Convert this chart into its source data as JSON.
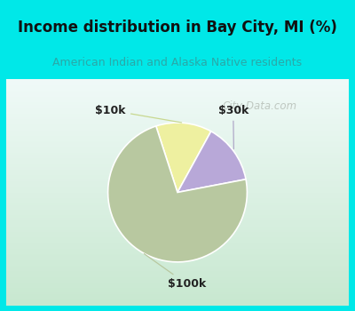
{
  "title": "Income distribution in Bay City, MI (%)",
  "subtitle": "American Indian and Alaska Native residents",
  "title_color": "#111111",
  "subtitle_color": "#2aa8a8",
  "slices": [
    {
      "label": "$10k",
      "value": 13,
      "color": "#eef0a0"
    },
    {
      "label": "$30k",
      "value": 14,
      "color": "#b8a8d8"
    },
    {
      "label": "$100k",
      "value": 73,
      "color": "#b8c8a0"
    }
  ],
  "header_color": "#00e8e8",
  "chart_bg_top": "#f0faf8",
  "chart_bg_bottom": "#c8e8d0",
  "border_color": "#00e8e8",
  "watermark": "City-Data.com",
  "pie_edge_color": "#ffffff",
  "startangle": 108,
  "label_fontsize": 9,
  "title_fontsize": 12,
  "subtitle_fontsize": 9
}
